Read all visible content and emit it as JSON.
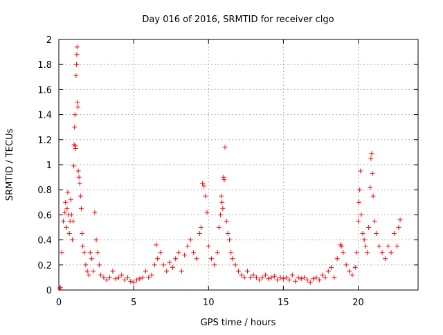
{
  "chart_data": {
    "type": "scatter",
    "title": "Day 016 of 2016, SRMTID for receiver clgo",
    "xlabel": "GPS time / hours",
    "ylabel": "SRMTID / TECUs",
    "xlim": [
      0,
      24
    ],
    "ylim": [
      0,
      2
    ],
    "xticks": [
      0,
      5,
      10,
      15,
      20
    ],
    "xtick_labels": [
      "0",
      "5",
      "10",
      "15",
      "20"
    ],
    "yticks": [
      0,
      0.2,
      0.4,
      0.6,
      0.8,
      1,
      1.2,
      1.4,
      1.6,
      1.8,
      2
    ],
    "ytick_labels": [
      "0",
      "0.2",
      "0.4",
      "0.6",
      "0.8",
      "1",
      "1.2",
      "1.4",
      "1.6",
      "1.8",
      "2"
    ],
    "grid": true,
    "marker": "+",
    "color": "#ff0000",
    "series": [
      {
        "name": "SRMTID",
        "x": [
          0.05,
          0.1,
          0.2,
          0.3,
          0.4,
          0.45,
          0.5,
          0.55,
          0.6,
          0.65,
          0.7,
          0.75,
          0.8,
          0.85,
          0.9,
          0.95,
          1.0,
          1.02,
          1.05,
          1.08,
          1.1,
          1.12,
          1.15,
          1.18,
          1.2,
          1.22,
          1.25,
          1.28,
          1.3,
          1.35,
          1.4,
          1.45,
          1.5,
          1.55,
          1.6,
          1.7,
          1.8,
          1.9,
          2.0,
          2.1,
          2.2,
          2.3,
          2.4,
          2.5,
          2.6,
          2.7,
          2.8,
          3.0,
          3.2,
          3.4,
          3.6,
          3.8,
          4.0,
          4.2,
          4.4,
          4.6,
          4.8,
          5.0,
          5.2,
          5.4,
          5.6,
          5.8,
          6.0,
          6.2,
          6.4,
          6.5,
          6.6,
          6.8,
          7.0,
          7.2,
          7.4,
          7.6,
          7.8,
          8.0,
          8.2,
          8.4,
          8.6,
          8.8,
          9.0,
          9.2,
          9.4,
          9.5,
          9.6,
          9.7,
          9.8,
          9.9,
          10.0,
          10.2,
          10.4,
          10.6,
          10.7,
          10.8,
          10.85,
          10.9,
          10.95,
          11.0,
          11.05,
          11.1,
          11.2,
          11.3,
          11.4,
          11.5,
          11.6,
          11.8,
          12.0,
          12.2,
          12.4,
          12.6,
          12.8,
          13.0,
          13.2,
          13.4,
          13.6,
          13.8,
          14.0,
          14.2,
          14.4,
          14.6,
          14.8,
          15.0,
          15.2,
          15.4,
          15.6,
          15.8,
          16.0,
          16.2,
          16.4,
          16.6,
          16.8,
          17.0,
          17.2,
          17.4,
          17.6,
          17.8,
          18.0,
          18.2,
          18.4,
          18.6,
          18.8,
          18.9,
          19.0,
          19.2,
          19.4,
          19.6,
          19.8,
          19.9,
          20.0,
          20.05,
          20.1,
          20.15,
          20.2,
          20.3,
          20.4,
          20.5,
          20.6,
          20.7,
          20.8,
          20.85,
          20.9,
          20.95,
          21.0,
          21.1,
          21.2,
          21.4,
          21.6,
          21.8,
          22.0,
          22.2,
          22.4,
          22.6,
          22.7,
          22.8
        ],
        "y": [
          0.01,
          0.02,
          0.3,
          0.55,
          0.62,
          0.7,
          0.5,
          0.65,
          0.78,
          0.6,
          0.45,
          0.55,
          0.72,
          0.6,
          0.4,
          0.55,
          0.99,
          1.16,
          1.3,
          1.4,
          1.15,
          1.13,
          1.71,
          1.8,
          1.88,
          1.94,
          1.5,
          1.46,
          0.95,
          0.9,
          0.85,
          0.75,
          0.65,
          0.45,
          0.35,
          0.3,
          0.2,
          0.15,
          0.12,
          0.3,
          0.25,
          0.15,
          0.62,
          0.4,
          0.3,
          0.2,
          0.12,
          0.1,
          0.08,
          0.1,
          0.15,
          0.09,
          0.1,
          0.12,
          0.08,
          0.1,
          0.07,
          0.06,
          0.08,
          0.09,
          0.1,
          0.15,
          0.1,
          0.12,
          0.2,
          0.36,
          0.25,
          0.3,
          0.2,
          0.15,
          0.22,
          0.18,
          0.25,
          0.3,
          0.15,
          0.28,
          0.35,
          0.4,
          0.3,
          0.25,
          0.45,
          0.5,
          0.85,
          0.83,
          0.75,
          0.62,
          0.35,
          0.25,
          0.2,
          0.3,
          0.5,
          0.6,
          0.75,
          0.7,
          0.65,
          0.9,
          0.88,
          1.14,
          0.55,
          0.45,
          0.4,
          0.3,
          0.25,
          0.2,
          0.15,
          0.12,
          0.1,
          0.15,
          0.1,
          0.12,
          0.1,
          0.08,
          0.1,
          0.12,
          0.09,
          0.1,
          0.11,
          0.08,
          0.1,
          0.09,
          0.1,
          0.08,
          0.12,
          0.07,
          0.1,
          0.09,
          0.1,
          0.08,
          0.06,
          0.09,
          0.1,
          0.08,
          0.12,
          0.1,
          0.15,
          0.18,
          0.1,
          0.25,
          0.36,
          0.35,
          0.3,
          0.2,
          0.15,
          0.12,
          0.18,
          0.3,
          0.55,
          0.7,
          0.8,
          0.95,
          0.6,
          0.45,
          0.4,
          0.35,
          0.3,
          0.5,
          0.82,
          1.05,
          1.09,
          0.93,
          0.75,
          0.55,
          0.45,
          0.35,
          0.3,
          0.25,
          0.35,
          0.3,
          0.45,
          0.35,
          0.5,
          0.56
        ]
      }
    ]
  }
}
